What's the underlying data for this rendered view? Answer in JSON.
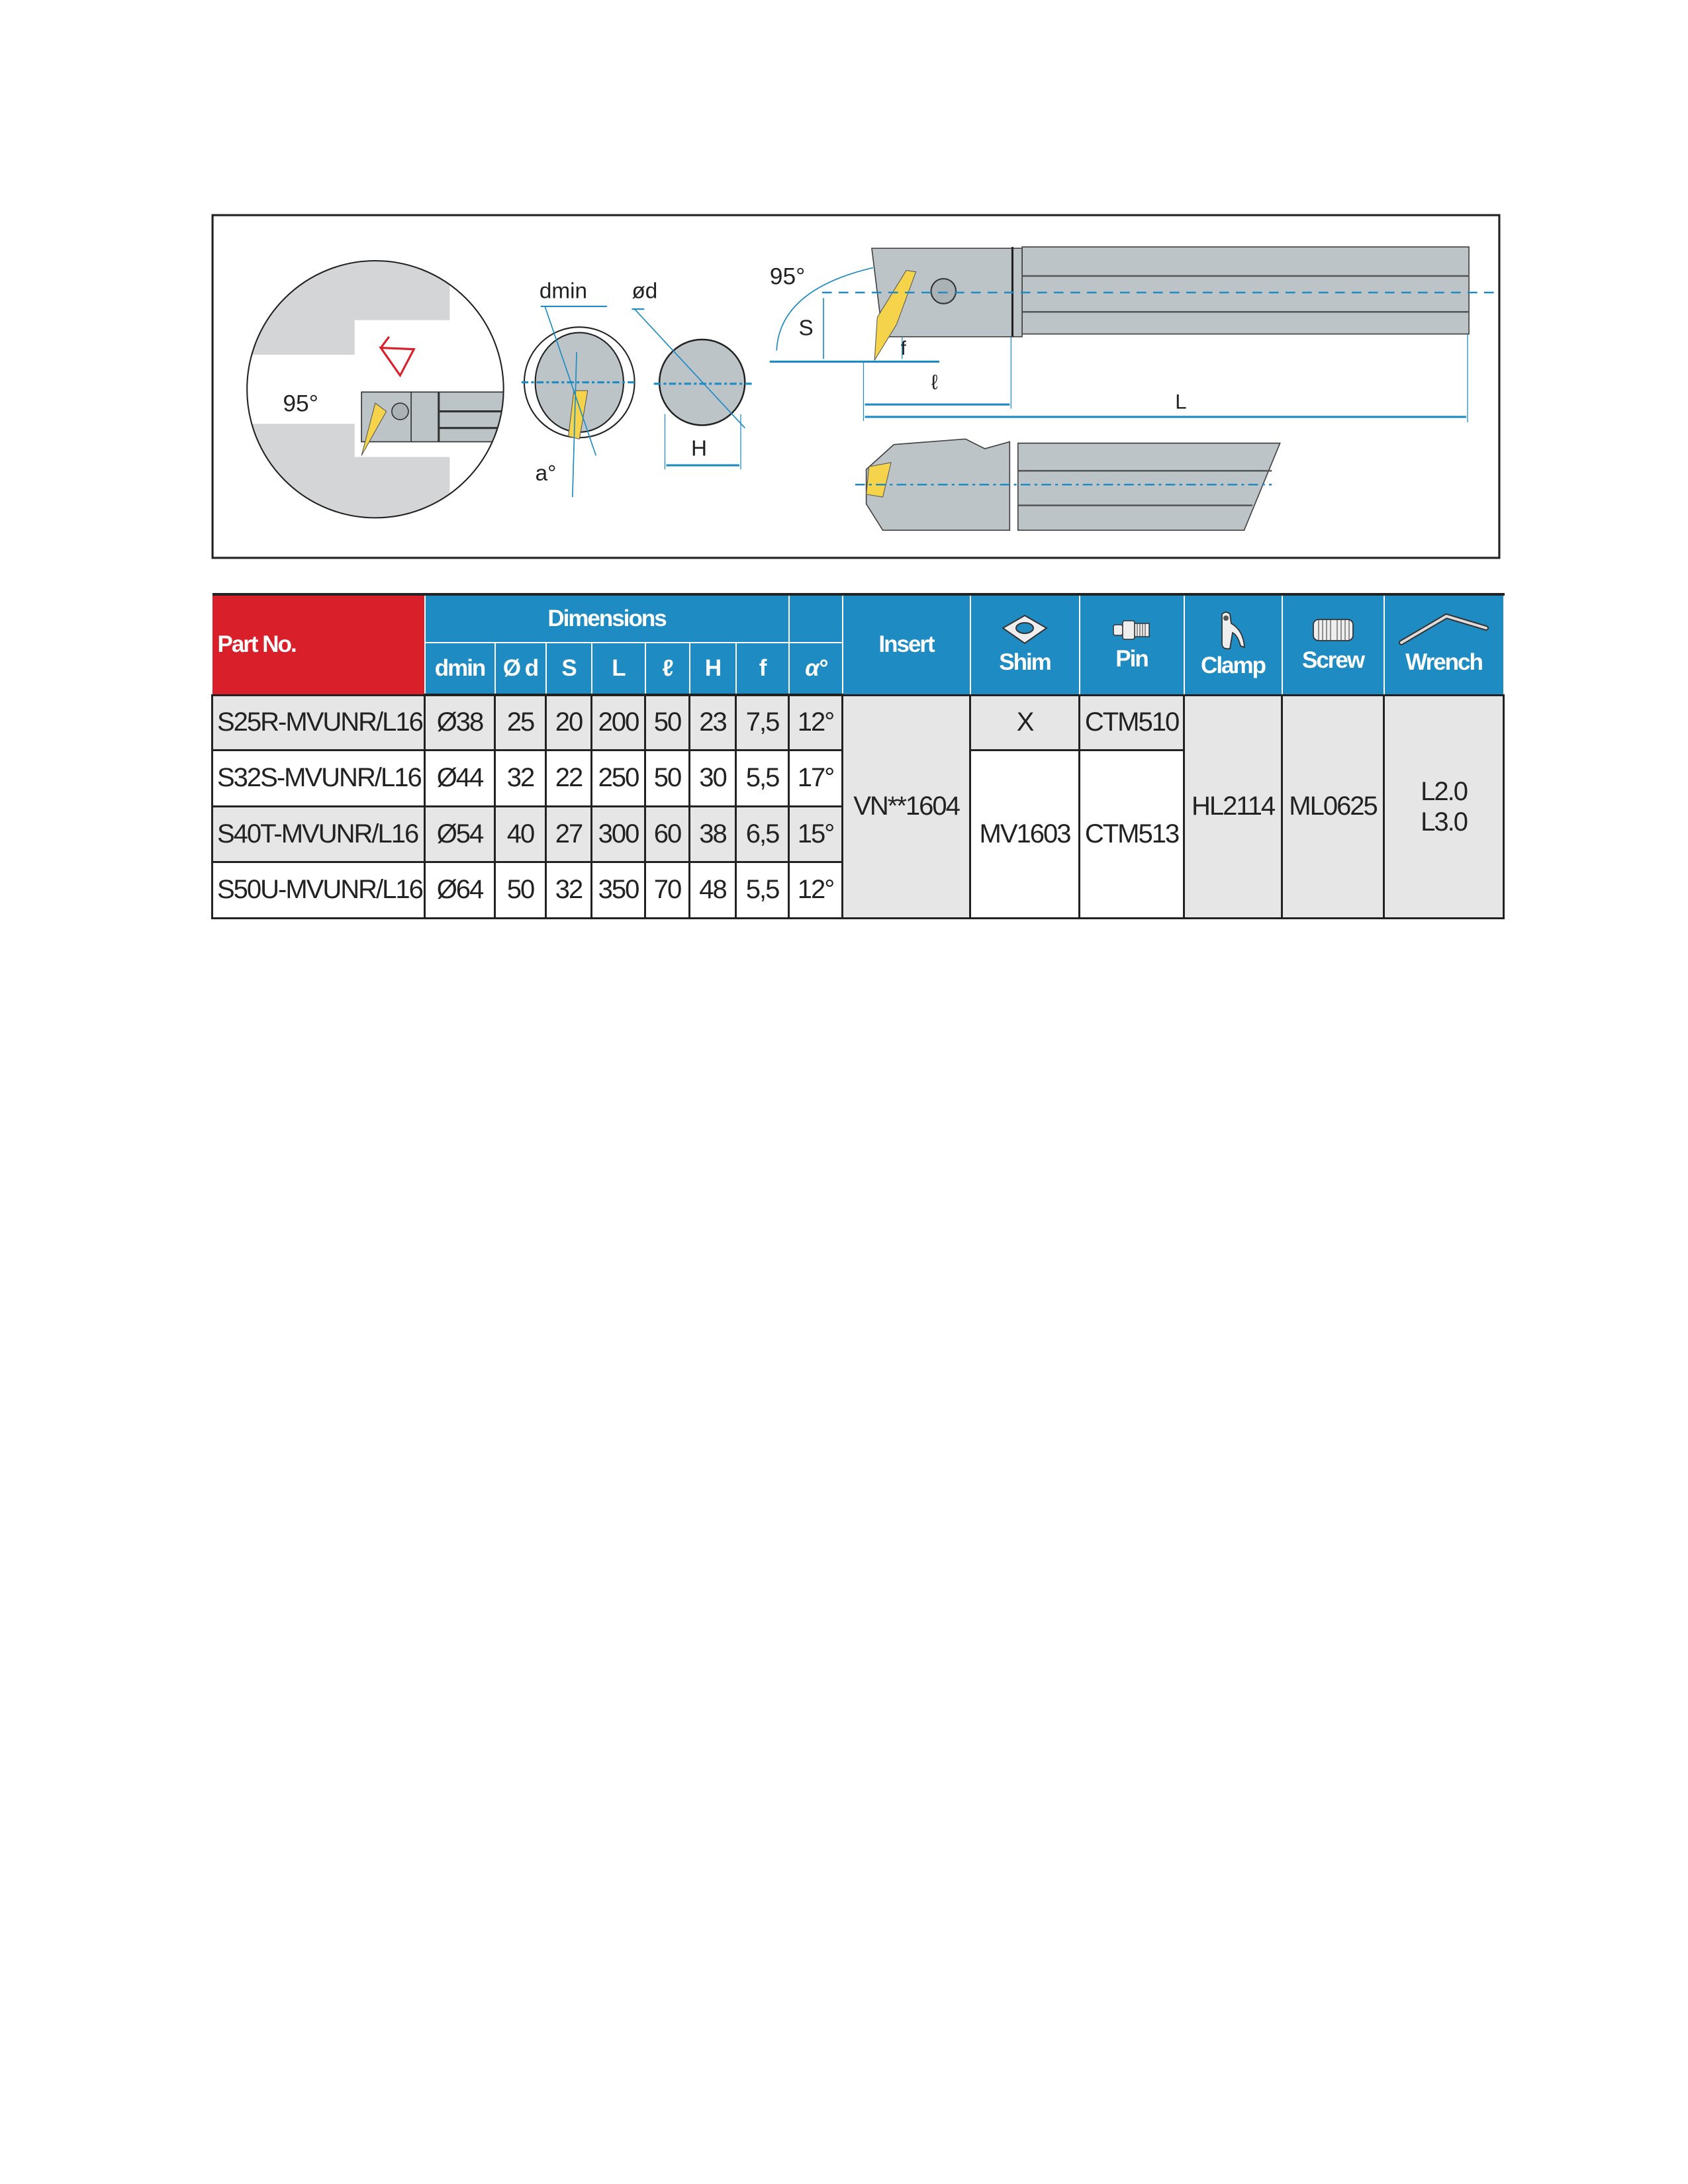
{
  "diagram": {
    "angle_left": "95°",
    "label_dmin": "dmin",
    "label_od": "ød",
    "label_a": "a°",
    "label_H": "H",
    "angle_top": "95°",
    "label_S": "S",
    "label_f": "f",
    "label_l": "ℓ",
    "label_L": "L",
    "colors": {
      "body": "#bcc4c8",
      "insert": "#f5d44c",
      "dimension": "#1e8bc3",
      "arrow": "#d9202a"
    }
  },
  "table": {
    "header": {
      "part_no": "Part No.",
      "dimensions": "Dimensions",
      "dim_cols": [
        "dmin",
        "Ø d",
        "S",
        "L",
        "ℓ",
        "H",
        "f",
        "α°"
      ],
      "insert": "Insert",
      "shim": "Shim",
      "pin": "Pin",
      "clamp": "Clamp",
      "screw": "Screw",
      "wrench": "Wrench"
    },
    "rows": [
      {
        "part_no": "S25R-MVUNR/L16",
        "dmin": "Ø38",
        "d": "25",
        "S": "20",
        "L": "200",
        "l": "50",
        "H": "23",
        "f": "7,5",
        "a": "12°"
      },
      {
        "part_no": "S32S-MVUNR/L16",
        "dmin": "Ø44",
        "d": "32",
        "S": "22",
        "L": "250",
        "l": "50",
        "H": "30",
        "f": "5,5",
        "a": "17°"
      },
      {
        "part_no": "S40T-MVUNR/L16",
        "dmin": "Ø54",
        "d": "40",
        "S": "27",
        "L": "300",
        "l": "60",
        "H": "38",
        "f": "6,5",
        "a": "15°"
      },
      {
        "part_no": "S50U-MVUNR/L16",
        "dmin": "Ø64",
        "d": "50",
        "S": "32",
        "L": "350",
        "l": "70",
        "H": "48",
        "f": "5,5",
        "a": "12°"
      }
    ],
    "insert": "VN**1604",
    "shim_row1": "X",
    "shim_rest": "MV1603",
    "pin_row1": "CTM510",
    "pin_rest": "CTM513",
    "clamp": "HL2114",
    "screw": "ML0625",
    "wrench": [
      "L2.0",
      "L3.0"
    ],
    "colors": {
      "header_blue": "#1e8bc3",
      "header_red": "#d9202a",
      "row_gray": "#e6e6e6"
    }
  }
}
